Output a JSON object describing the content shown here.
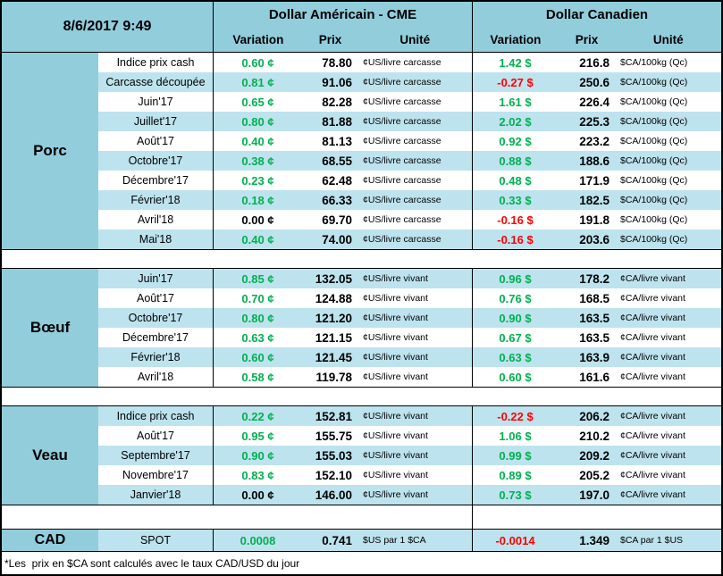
{
  "header": {
    "datetime": "8/6/2017 9:49",
    "us_title": "Dollar Américain - CME",
    "ca_title": "Dollar Canadien",
    "col_variation": "Variation",
    "col_prix": "Prix",
    "col_unite": "Unité"
  },
  "colors": {
    "header_cyan": "#92CDDC",
    "stripe_blue": "#BDE3EE",
    "positive": "#00B050",
    "negative": "#FF0000",
    "zero": "#000000"
  },
  "sections": [
    {
      "name": "Porc",
      "first_row_shade": "white",
      "us_unit": "¢US/livre carcasse",
      "ca_unit": "$CA/100kg (Qc)",
      "rows": [
        {
          "label": "Indice prix cash",
          "us_variation": "0.60 ¢",
          "us_price": "78.80",
          "ca_variation": "1.42 $",
          "ca_price": "216.8"
        },
        {
          "label": "Carcasse découpée",
          "us_variation": "0.81 ¢",
          "us_price": "91.06",
          "ca_variation": "-0.27 $",
          "ca_price": "250.6"
        },
        {
          "label": "Juin'17",
          "us_variation": "0.65 ¢",
          "us_price": "82.28",
          "ca_variation": "1.61 $",
          "ca_price": "226.4"
        },
        {
          "label": "Juillet'17",
          "us_variation": "0.80 ¢",
          "us_price": "81.88",
          "ca_variation": "2.02 $",
          "ca_price": "225.3"
        },
        {
          "label": "Août'17",
          "us_variation": "0.40 ¢",
          "us_price": "81.13",
          "ca_variation": "0.92 $",
          "ca_price": "223.2"
        },
        {
          "label": "Octobre'17",
          "us_variation": "0.38 ¢",
          "us_price": "68.55",
          "ca_variation": "0.88 $",
          "ca_price": "188.6"
        },
        {
          "label": "Décembre'17",
          "us_variation": "0.23 ¢",
          "us_price": "62.48",
          "ca_variation": "0.48 $",
          "ca_price": "171.9"
        },
        {
          "label": "Février'18",
          "us_variation": "0.18 ¢",
          "us_price": "66.33",
          "ca_variation": "0.33 $",
          "ca_price": "182.5"
        },
        {
          "label": "Avril'18",
          "us_variation": "0.00 ¢",
          "us_price": "69.70",
          "ca_variation": "-0.16 $",
          "ca_price": "191.8"
        },
        {
          "label": "Mai'18",
          "us_variation": "0.40 ¢",
          "us_price": "74.00",
          "ca_variation": "-0.16 $",
          "ca_price": "203.6"
        }
      ]
    },
    {
      "name": "Bœuf",
      "first_row_shade": "blue",
      "us_unit": "¢US/livre vivant",
      "ca_unit": "¢CA/livre vivant",
      "rows": [
        {
          "label": "Juin'17",
          "us_variation": "0.85 ¢",
          "us_price": "132.05",
          "ca_variation": "0.96 $",
          "ca_price": "178.2"
        },
        {
          "label": "Août'17",
          "us_variation": "0.70 ¢",
          "us_price": "124.88",
          "ca_variation": "0.76 $",
          "ca_price": "168.5"
        },
        {
          "label": "Octobre'17",
          "us_variation": "0.80 ¢",
          "us_price": "121.20",
          "ca_variation": "0.90 $",
          "ca_price": "163.5"
        },
        {
          "label": "Décembre'17",
          "us_variation": "0.63 ¢",
          "us_price": "121.15",
          "ca_variation": "0.67 $",
          "ca_price": "163.5"
        },
        {
          "label": "Février'18",
          "us_variation": "0.60 ¢",
          "us_price": "121.45",
          "ca_variation": "0.63 $",
          "ca_price": "163.9"
        },
        {
          "label": "Avril'18",
          "us_variation": "0.58 ¢",
          "us_price": "119.78",
          "ca_variation": "0.60 $",
          "ca_price": "161.6"
        }
      ]
    },
    {
      "name": "Veau",
      "first_row_shade": "blue",
      "us_unit": "¢US/livre vivant",
      "ca_unit": "¢CA/livre vivant",
      "rows": [
        {
          "label": "Indice prix cash",
          "us_variation": "0.22 ¢",
          "us_price": "152.81",
          "ca_variation": "-0.22 $",
          "ca_price": "206.2"
        },
        {
          "label": "Août'17",
          "us_variation": "0.95 ¢",
          "us_price": "155.75",
          "ca_variation": "1.06 $",
          "ca_price": "210.2"
        },
        {
          "label": "Septembre'17",
          "us_variation": "0.90 ¢",
          "us_price": "155.03",
          "ca_variation": "0.99 $",
          "ca_price": "209.2"
        },
        {
          "label": "Novembre'17",
          "us_variation": "0.83 ¢",
          "us_price": "152.10",
          "ca_variation": "0.89 $",
          "ca_price": "205.2"
        },
        {
          "label": "Janvier'18",
          "us_variation": "0.00 ¢",
          "us_price": "146.00",
          "ca_variation": "0.73 $",
          "ca_price": "197.0"
        }
      ]
    }
  ],
  "cad": {
    "category": "CAD",
    "label": "SPOT",
    "us_variation": "0.0008",
    "us_price": "0.741",
    "us_unit": "$US par 1 $CA",
    "ca_variation": "-0.0014",
    "ca_price": "1.349",
    "ca_unit": "$CA par 1 $US"
  },
  "footnote": "*Les  prix en $CA sont calculés avec le taux CAD/USD du jour"
}
